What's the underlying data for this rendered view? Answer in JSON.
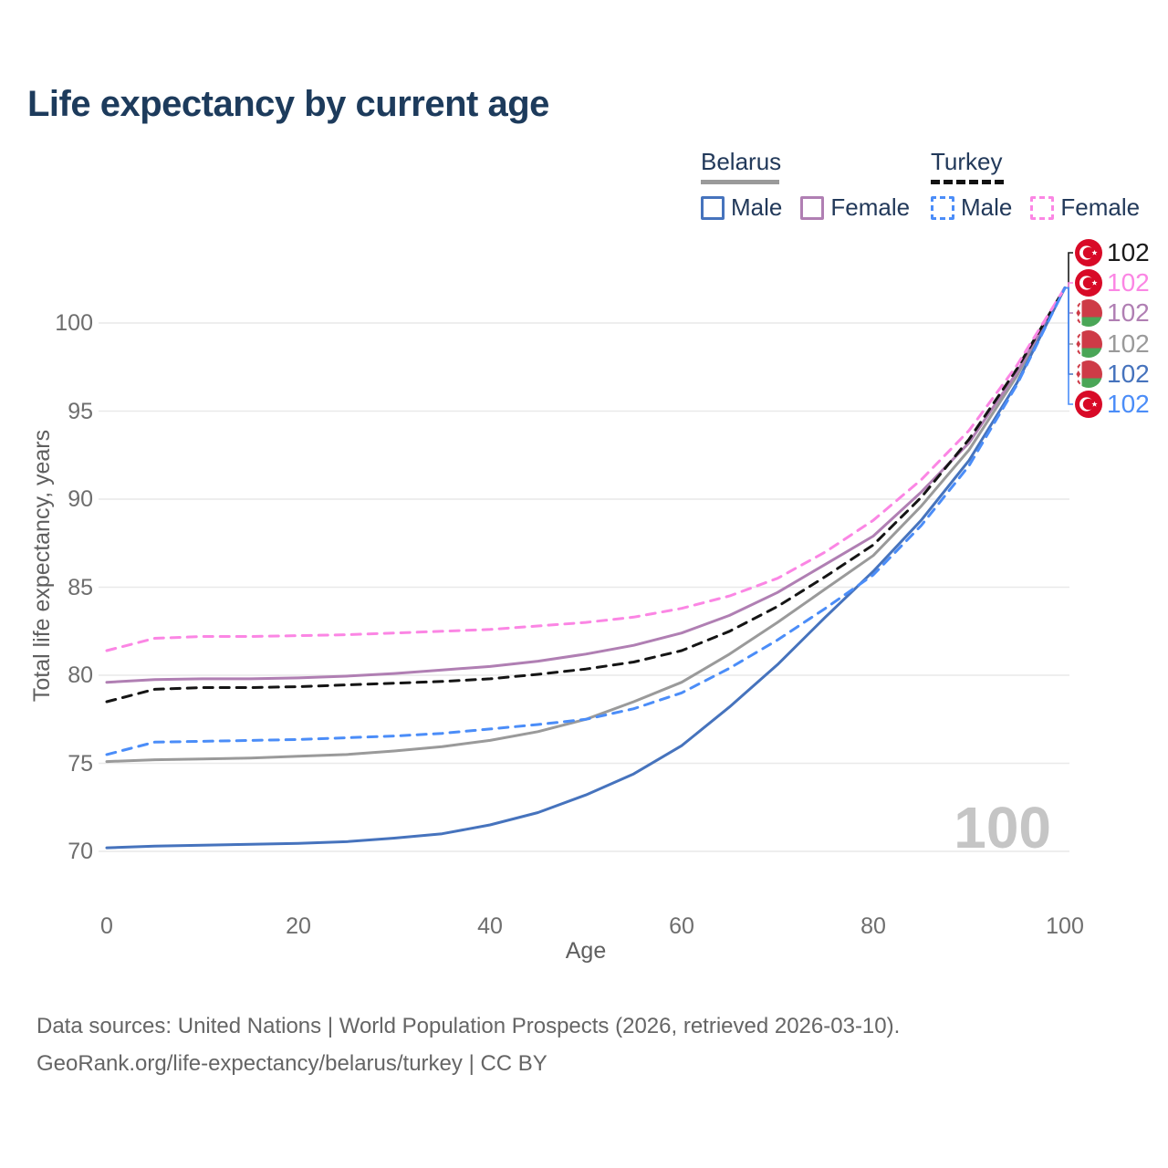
{
  "title": "Life expectancy by current age",
  "legend": {
    "groups": [
      {
        "name": "Belarus",
        "line_style": "solid",
        "line_color": "#9a9a9a",
        "items": [
          {
            "label": "Male",
            "color": "#4673bd",
            "dashed": false
          },
          {
            "label": "Female",
            "color": "#b07fb3",
            "dashed": false
          }
        ]
      },
      {
        "name": "Turkey",
        "line_style": "dashed",
        "line_color": "#121212",
        "items": [
          {
            "label": "Male",
            "color": "#4b8df8",
            "dashed": true
          },
          {
            "label": "Female",
            "color": "#fb86e4",
            "dashed": true
          }
        ]
      }
    ]
  },
  "chart_data": {
    "type": "line",
    "title": "Life expectancy by current age",
    "xlabel": "Age",
    "ylabel": "Total life expectancy, years",
    "x": [
      0,
      5,
      10,
      15,
      20,
      25,
      30,
      35,
      40,
      45,
      50,
      55,
      60,
      65,
      70,
      75,
      80,
      85,
      90,
      95,
      100
    ],
    "xticks": [
      0,
      20,
      40,
      60,
      80,
      100
    ],
    "yticks": [
      70,
      75,
      80,
      85,
      90,
      95,
      100
    ],
    "xlim": [
      0,
      100
    ],
    "ylim": [
      69,
      103
    ],
    "grid": "horizontal",
    "legend_position": "top-right",
    "series": [
      {
        "name": "Belarus Both sexes",
        "country": "Belarus",
        "sex": "both",
        "color": "#9a9a9a",
        "dashed": false,
        "values": [
          75.1,
          75.2,
          75.25,
          75.3,
          75.4,
          75.5,
          75.7,
          75.95,
          76.3,
          76.8,
          77.5,
          78.5,
          79.6,
          81.2,
          83.0,
          84.9,
          86.8,
          89.6,
          92.8,
          97.0,
          102
        ]
      },
      {
        "name": "Belarus Female",
        "country": "Belarus",
        "sex": "female",
        "color": "#b07fb3",
        "dashed": false,
        "values": [
          79.6,
          79.75,
          79.8,
          79.8,
          79.85,
          79.95,
          80.1,
          80.3,
          80.5,
          80.8,
          81.2,
          81.7,
          82.4,
          83.4,
          84.7,
          86.3,
          87.9,
          90.4,
          93.2,
          97.2,
          102
        ]
      },
      {
        "name": "Belarus Male",
        "country": "Belarus",
        "sex": "male",
        "color": "#4673bd",
        "dashed": false,
        "values": [
          70.2,
          70.3,
          70.35,
          70.4,
          70.45,
          70.55,
          70.75,
          71.0,
          71.5,
          72.2,
          73.2,
          74.4,
          76.0,
          78.2,
          80.6,
          83.3,
          85.9,
          88.8,
          92.2,
          96.6,
          102
        ]
      },
      {
        "name": "Turkey Both sexes",
        "country": "Turkey",
        "sex": "both",
        "color": "#151515",
        "dashed": true,
        "values": [
          78.5,
          79.2,
          79.3,
          79.3,
          79.35,
          79.45,
          79.55,
          79.65,
          79.8,
          80.05,
          80.35,
          80.75,
          81.4,
          82.5,
          83.9,
          85.6,
          87.4,
          90.1,
          93.4,
          97.4,
          102
        ]
      },
      {
        "name": "Turkey Female",
        "country": "Turkey",
        "sex": "female",
        "color": "#fb86e4",
        "dashed": true,
        "values": [
          81.4,
          82.1,
          82.2,
          82.2,
          82.25,
          82.3,
          82.4,
          82.5,
          82.6,
          82.8,
          83.0,
          83.3,
          83.8,
          84.5,
          85.5,
          87.0,
          88.8,
          91.1,
          93.9,
          97.6,
          102
        ]
      },
      {
        "name": "Turkey Male",
        "country": "Turkey",
        "sex": "male",
        "color": "#4b8df8",
        "dashed": true,
        "values": [
          75.5,
          76.2,
          76.25,
          76.3,
          76.35,
          76.45,
          76.55,
          76.7,
          76.95,
          77.2,
          77.5,
          78.1,
          79.0,
          80.4,
          82.0,
          83.8,
          85.7,
          88.5,
          91.9,
          96.5,
          102
        ]
      }
    ]
  },
  "end_labels": [
    {
      "value": "102",
      "flag": "turkey",
      "color": "#1a1a1a"
    },
    {
      "value": "102",
      "flag": "turkey",
      "color": "#fb86e4"
    },
    {
      "value": "102",
      "flag": "belarus",
      "color": "#b07fb3"
    },
    {
      "value": "102",
      "flag": "belarus",
      "color": "#9a9a9a"
    },
    {
      "value": "102",
      "flag": "belarus",
      "color": "#4673bd"
    },
    {
      "value": "102",
      "flag": "turkey",
      "color": "#4b8df8"
    }
  ],
  "watermark": "100",
  "footer": {
    "line1": "Data sources: United Nations | World Population Prospects (2026, retrieved 2026-03-10).",
    "line2": "GeoRank.org/life-expectancy/belarus/turkey | CC BY"
  }
}
